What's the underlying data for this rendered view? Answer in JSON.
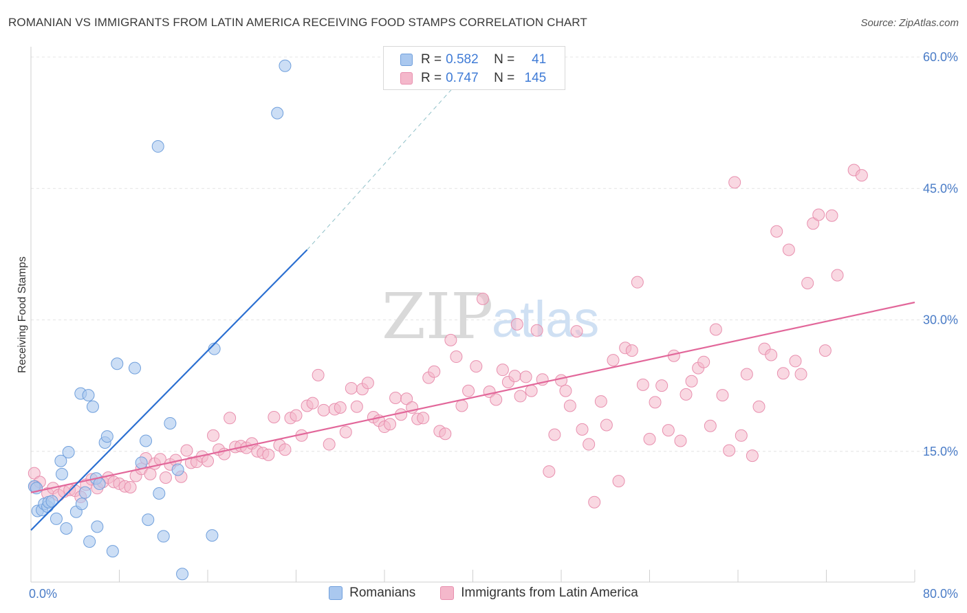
{
  "title": "ROMANIAN VS IMMIGRANTS FROM LATIN AMERICA RECEIVING FOOD STAMPS CORRELATION CHART",
  "source": "Source: ZipAtlas.com",
  "watermark": {
    "zip": "ZIP",
    "atlas": "atlas"
  },
  "colors": {
    "romanians_fill": "#aac8ef",
    "romanians_stroke": "#6f9fdc",
    "romanians_line": "#2b6fd1",
    "latin_fill": "#f4b8cb",
    "latin_stroke": "#e88fae",
    "latin_line": "#e2679a",
    "tick_text": "#4a7cc7",
    "grid": "#e4e4e4"
  },
  "legend": {
    "rows": [
      {
        "r_label": "R =",
        "r_value": "0.582",
        "n_label": "N =",
        "n_value": "41"
      },
      {
        "r_label": "R =",
        "r_value": "0.747",
        "n_label": "N =",
        "n_value": "145"
      }
    ]
  },
  "bottom_legend": [
    "Romanians",
    "Immigrants from Latin America"
  ],
  "chart_data": {
    "type": "scatter",
    "title": "ROMANIAN VS IMMIGRANTS FROM LATIN AMERICA RECEIVING FOOD STAMPS CORRELATION CHART",
    "xlabel": "",
    "ylabel": "Receiving Food Stamps",
    "xlim": [
      0,
      80
    ],
    "ylim": [
      0,
      60
    ],
    "x_tick_labels": [
      "0.0%",
      "80.0%"
    ],
    "y_ticks": [
      15,
      30,
      45,
      60
    ],
    "y_tick_labels": [
      "15.0%",
      "30.0%",
      "45.0%",
      "60.0%"
    ],
    "grid": true,
    "legend_position": "top-center",
    "series": [
      {
        "name": "Romanians",
        "r": 0.582,
        "n": 41,
        "trend": {
          "x0": 0,
          "y0": 6.0,
          "x1": 25,
          "y1": 38.0,
          "dashed_to_x": 40,
          "dashed_to_y": 59.0
        },
        "points": [
          [
            0.3,
            11.0
          ],
          [
            0.5,
            10.8
          ],
          [
            0.6,
            8.2
          ],
          [
            1.0,
            8.3
          ],
          [
            1.2,
            9.0
          ],
          [
            1.5,
            8.7
          ],
          [
            1.6,
            9.2
          ],
          [
            1.9,
            9.3
          ],
          [
            2.3,
            7.3
          ],
          [
            2.7,
            13.9
          ],
          [
            2.8,
            12.4
          ],
          [
            3.2,
            6.2
          ],
          [
            3.4,
            14.9
          ],
          [
            4.1,
            8.1
          ],
          [
            4.5,
            21.6
          ],
          [
            4.6,
            9.0
          ],
          [
            4.9,
            10.3
          ],
          [
            5.2,
            21.4
          ],
          [
            5.6,
            20.1
          ],
          [
            5.3,
            4.7
          ],
          [
            5.9,
            11.9
          ],
          [
            6.0,
            6.4
          ],
          [
            6.2,
            11.3
          ],
          [
            6.7,
            16.0
          ],
          [
            6.9,
            16.7
          ],
          [
            7.4,
            3.6
          ],
          [
            7.8,
            25.0
          ],
          [
            9.4,
            24.5
          ],
          [
            10.0,
            13.7
          ],
          [
            10.4,
            16.2
          ],
          [
            10.6,
            7.2
          ],
          [
            11.5,
            49.8
          ],
          [
            11.6,
            10.2
          ],
          [
            12.0,
            5.3
          ],
          [
            12.6,
            18.2
          ],
          [
            13.3,
            12.9
          ],
          [
            13.7,
            1.0
          ],
          [
            16.4,
            5.4
          ],
          [
            16.6,
            26.7
          ],
          [
            22.3,
            53.6
          ],
          [
            23.0,
            59.0
          ]
        ]
      },
      {
        "name": "Immigrants from Latin America",
        "r": 0.747,
        "n": 145,
        "trend": {
          "x0": 0,
          "y0": 10.3,
          "x1": 80,
          "y1": 32.0
        },
        "points": [
          [
            0.3,
            12.5
          ],
          [
            0.4,
            11.0
          ],
          [
            0.8,
            11.5
          ],
          [
            1.5,
            10.2
          ],
          [
            2.0,
            10.8
          ],
          [
            2.5,
            10.0
          ],
          [
            3.0,
            10.4
          ],
          [
            3.5,
            10.6
          ],
          [
            4.0,
            10.5
          ],
          [
            4.5,
            9.8
          ],
          [
            5.0,
            11.2
          ],
          [
            5.5,
            11.8
          ],
          [
            6.0,
            10.8
          ],
          [
            6.5,
            11.5
          ],
          [
            7.0,
            12.0
          ],
          [
            7.5,
            11.5
          ],
          [
            8.0,
            11.3
          ],
          [
            8.5,
            11.0
          ],
          [
            9.0,
            10.9
          ],
          [
            9.5,
            12.2
          ],
          [
            10.0,
            13.0
          ],
          [
            10.4,
            14.2
          ],
          [
            10.8,
            12.4
          ],
          [
            11.2,
            13.6
          ],
          [
            11.7,
            14.1
          ],
          [
            12.2,
            12.0
          ],
          [
            12.6,
            13.5
          ],
          [
            13.1,
            14.0
          ],
          [
            13.6,
            12.1
          ],
          [
            14.1,
            15.1
          ],
          [
            14.5,
            13.7
          ],
          [
            15.0,
            13.8
          ],
          [
            15.5,
            14.4
          ],
          [
            16.0,
            13.9
          ],
          [
            16.5,
            16.8
          ],
          [
            17.0,
            15.2
          ],
          [
            17.5,
            14.7
          ],
          [
            18.0,
            18.8
          ],
          [
            18.5,
            15.5
          ],
          [
            19.0,
            15.6
          ],
          [
            19.5,
            15.4
          ],
          [
            20.0,
            15.9
          ],
          [
            20.5,
            15.0
          ],
          [
            21.0,
            14.8
          ],
          [
            21.5,
            14.6
          ],
          [
            22.0,
            18.9
          ],
          [
            22.5,
            15.7
          ],
          [
            23.0,
            15.2
          ],
          [
            23.5,
            18.8
          ],
          [
            24.0,
            19.1
          ],
          [
            24.5,
            16.8
          ],
          [
            25.0,
            20.2
          ],
          [
            25.5,
            20.5
          ],
          [
            26.0,
            23.7
          ],
          [
            26.5,
            19.7
          ],
          [
            27.0,
            15.8
          ],
          [
            27.5,
            19.8
          ],
          [
            28.0,
            20.0
          ],
          [
            28.5,
            17.2
          ],
          [
            29.0,
            22.2
          ],
          [
            29.5,
            20.1
          ],
          [
            30.0,
            22.1
          ],
          [
            30.5,
            22.8
          ],
          [
            31.0,
            18.9
          ],
          [
            31.5,
            18.5
          ],
          [
            32.0,
            17.8
          ],
          [
            32.5,
            18.1
          ],
          [
            33.0,
            21.1
          ],
          [
            33.5,
            19.2
          ],
          [
            34.0,
            21.0
          ],
          [
            34.5,
            20.0
          ],
          [
            35.0,
            18.7
          ],
          [
            35.5,
            18.8
          ],
          [
            36.0,
            23.4
          ],
          [
            36.5,
            24.1
          ],
          [
            37.0,
            17.3
          ],
          [
            37.5,
            17.0
          ],
          [
            38.0,
            27.7
          ],
          [
            38.5,
            25.8
          ],
          [
            39.0,
            20.2
          ],
          [
            39.6,
            21.9
          ],
          [
            40.3,
            24.7
          ],
          [
            40.9,
            32.4
          ],
          [
            41.5,
            21.8
          ],
          [
            42.1,
            20.9
          ],
          [
            42.7,
            24.3
          ],
          [
            43.2,
            22.9
          ],
          [
            43.8,
            23.6
          ],
          [
            44.3,
            21.3
          ],
          [
            44.8,
            23.5
          ],
          [
            45.3,
            21.9
          ],
          [
            45.8,
            28.8
          ],
          [
            46.3,
            23.2
          ],
          [
            46.9,
            12.7
          ],
          [
            47.4,
            16.9
          ],
          [
            48.0,
            23.1
          ],
          [
            48.4,
            21.9
          ],
          [
            48.8,
            20.2
          ],
          [
            49.4,
            28.7
          ],
          [
            49.9,
            17.5
          ],
          [
            50.5,
            15.8
          ],
          [
            51.0,
            9.2
          ],
          [
            51.6,
            20.7
          ],
          [
            52.1,
            18.0
          ],
          [
            52.7,
            25.4
          ],
          [
            53.2,
            11.6
          ],
          [
            53.8,
            26.8
          ],
          [
            54.4,
            26.5
          ],
          [
            54.9,
            34.3
          ],
          [
            55.4,
            22.6
          ],
          [
            56.0,
            16.4
          ],
          [
            56.5,
            20.6
          ],
          [
            57.1,
            22.5
          ],
          [
            57.7,
            17.4
          ],
          [
            58.2,
            25.9
          ],
          [
            58.8,
            16.2
          ],
          [
            59.3,
            21.5
          ],
          [
            59.8,
            23.0
          ],
          [
            60.4,
            24.5
          ],
          [
            60.9,
            25.2
          ],
          [
            61.5,
            17.9
          ],
          [
            62.0,
            28.9
          ],
          [
            62.6,
            21.4
          ],
          [
            63.2,
            15.1
          ],
          [
            63.7,
            45.7
          ],
          [
            64.3,
            16.8
          ],
          [
            64.8,
            23.8
          ],
          [
            65.3,
            14.5
          ],
          [
            65.9,
            20.1
          ],
          [
            66.4,
            26.7
          ],
          [
            67.0,
            26.0
          ],
          [
            67.5,
            40.1
          ],
          [
            68.1,
            23.9
          ],
          [
            68.6,
            38.0
          ],
          [
            69.2,
            25.3
          ],
          [
            69.7,
            23.8
          ],
          [
            70.3,
            34.2
          ],
          [
            70.8,
            41.0
          ],
          [
            71.3,
            42.0
          ],
          [
            71.9,
            26.5
          ],
          [
            72.5,
            41.9
          ],
          [
            73.0,
            35.1
          ],
          [
            74.5,
            47.1
          ],
          [
            75.2,
            46.5
          ],
          [
            44.0,
            29.5
          ]
        ]
      }
    ]
  }
}
